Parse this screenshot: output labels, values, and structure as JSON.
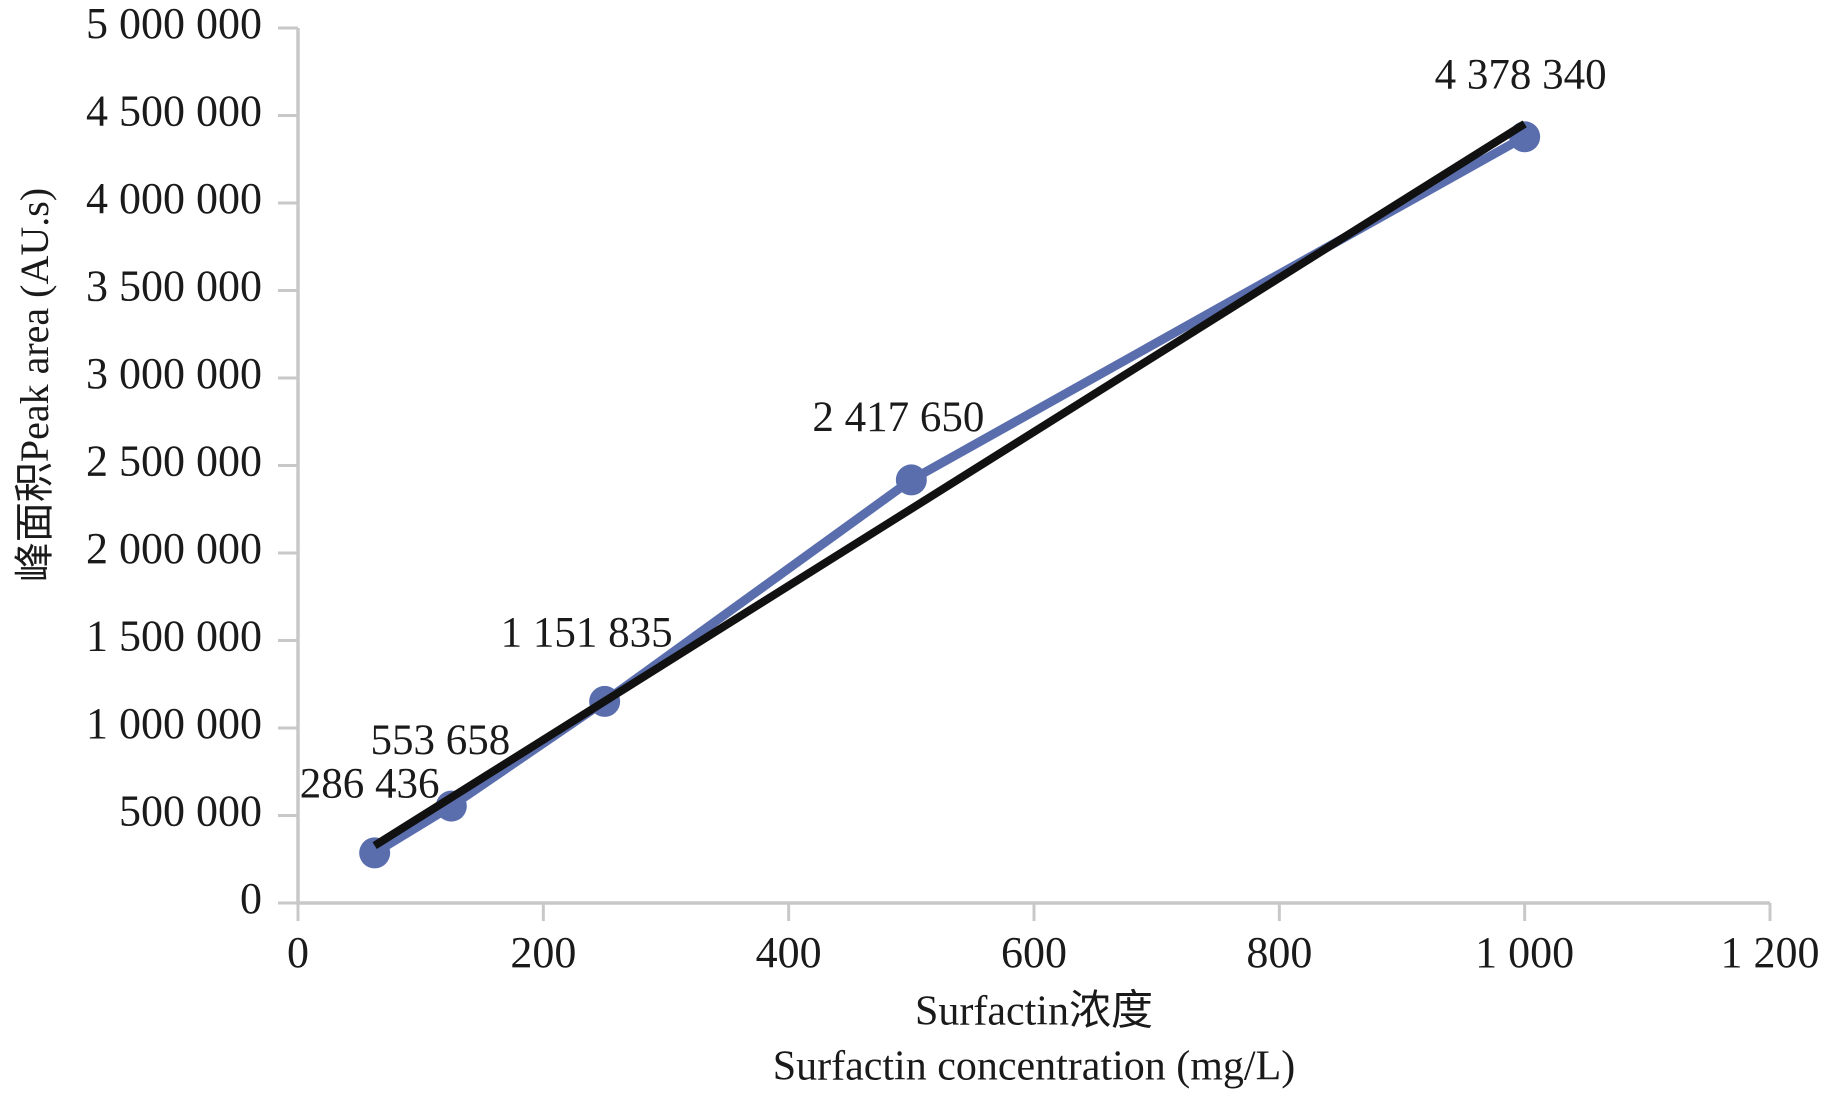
{
  "chart_data": {
    "type": "line",
    "title": "",
    "ylabel": "峰面积Peak area (AU.s)",
    "xlabel_line1": "Surfactin浓度",
    "xlabel_line2": "Surfactin concentration (mg/L)",
    "xlim": [
      0,
      1200
    ],
    "ylim": [
      0,
      5000000
    ],
    "grid": false,
    "legend": "none",
    "x": [
      62.5,
      125,
      250,
      500,
      1000
    ],
    "series": [
      {
        "name": "peak-area-series",
        "values": [
          286436,
          553658,
          1151835,
          2417650,
          4378340
        ],
        "point_labels": [
          "286 436",
          "553 658",
          "1 151 835",
          "2 417 650",
          "4 378 340"
        ],
        "color": "#5a6eae",
        "marker": "circle"
      },
      {
        "name": "linear-trendline",
        "type": "trendline",
        "color": "#111111",
        "endpoints": {
          "x": [
            62.5,
            1000
          ],
          "y": [
            327900,
            4452000
          ]
        }
      }
    ],
    "x_ticks": {
      "values": [
        0,
        200,
        400,
        600,
        800,
        1000,
        1200
      ],
      "labels": [
        "0",
        "200",
        "400",
        "600",
        "800",
        "1 000",
        "1 200"
      ]
    },
    "y_ticks": {
      "values": [
        0,
        500000,
        1000000,
        1500000,
        2000000,
        2500000,
        3000000,
        3500000,
        4000000,
        4500000,
        5000000
      ],
      "labels": [
        "0",
        "500 000",
        "1 000 000",
        "1 500 000",
        "2 000 000",
        "2 500 000",
        "3 000 000",
        "3 500 000",
        "4 000 000",
        "4 500 000",
        "5 000 000"
      ]
    },
    "colors": {
      "axis": "#c8c8c8",
      "text": "#1a1a1a",
      "series": "#5a6eae",
      "trendline": "#111111",
      "background": "#ffffff"
    }
  }
}
